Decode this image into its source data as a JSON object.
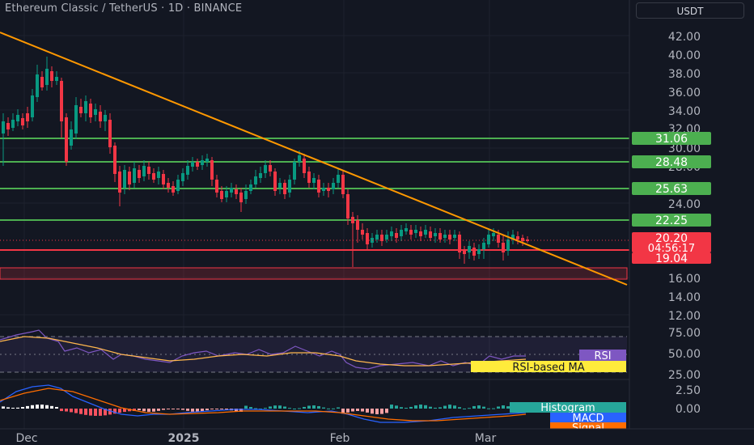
{
  "header": {
    "title": "Ethereum Classic / TetherUS · 1D · BINANCE",
    "currency": "USDT"
  },
  "price_axis": {
    "ticks": [
      "42.00",
      "40.00",
      "38.00",
      "36.00",
      "34.00",
      "32.00",
      "30.00",
      "28.00",
      "24.00",
      "16.00",
      "14.00",
      "12.00"
    ]
  },
  "levels": [
    {
      "label": "31.06",
      "color": "#4caf50"
    },
    {
      "label": "28.48",
      "color": "#4caf50"
    },
    {
      "label": "25.63",
      "color": "#4caf50"
    },
    {
      "label": "22.25",
      "color": "#4caf50"
    },
    {
      "label": "19.04",
      "color": "#f23645"
    }
  ],
  "current": {
    "price": "20.20",
    "countdown": "04:56:17",
    "color": "#f23645"
  },
  "rsi": {
    "ticks": [
      "75.00",
      "50.00",
      "25.00"
    ],
    "label": "RSI",
    "ma_label": "RSI-based MA"
  },
  "macd": {
    "ticks": [
      "2.50",
      "0.00"
    ],
    "histogram_label": "Histogram",
    "macd_label": "MACD",
    "signal_label": "Signal"
  },
  "time_axis": [
    "Dec",
    "2025",
    "Feb",
    "Mar"
  ],
  "colors": {
    "up": "#089981",
    "down": "#f23645",
    "trend": "#ff9800",
    "rsi_line": "#7e57c2",
    "rsi_ma": "#ffb74d",
    "macd": "#2962ff",
    "signal": "#ff6d00"
  }
}
